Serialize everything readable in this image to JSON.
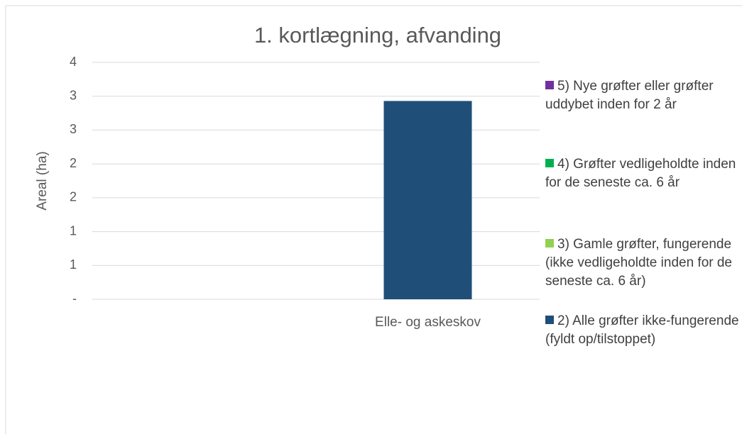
{
  "chart_data": {
    "type": "bar",
    "stacked": true,
    "title": "1. kortlægning, afvanding",
    "ylabel": "Areal (ha)",
    "categories": [
      null,
      "Elle- og askeskov"
    ],
    "series": [
      {
        "name": "2) Alle grøfter ikke-fungerende (fyldt op/tilstoppet)",
        "color": "#1f4e79",
        "values": [
          0,
          2.93
        ]
      },
      {
        "name": "3) Gamle grøfter, fungerende (ikke vedligeholdte inden for de seneste ca. 6 år)",
        "color": "#92d050",
        "values": [
          0,
          0
        ]
      },
      {
        "name": "4) Grøfter vedligeholdte inden for de seneste ca. 6 år",
        "color": "#00b050",
        "values": [
          0,
          0
        ]
      },
      {
        "name": "5) Nye grøfter eller grøfter uddybet inden for 2 år",
        "color": "#7030a0",
        "values": [
          0,
          0
        ]
      }
    ],
    "ylim": [
      0,
      3.5
    ],
    "yticks": [
      {
        "value": 0,
        "label": "-"
      },
      {
        "value": 0.5,
        "label": "1"
      },
      1,
      {
        "value": 1.5,
        "label": "2"
      },
      2,
      {
        "value": 2.5,
        "label": "3"
      },
      3,
      {
        "value": 3.5,
        "label": "4"
      }
    ],
    "grid": true,
    "legend": "right"
  }
}
